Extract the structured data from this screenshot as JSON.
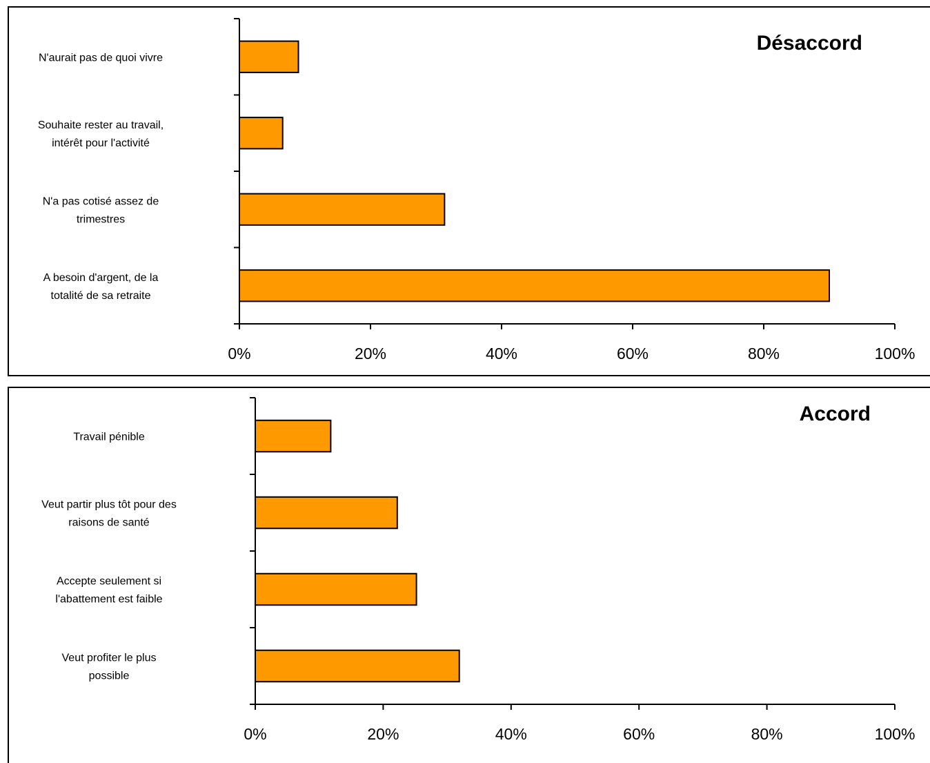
{
  "colors": {
    "bar_fill": "#FF9900",
    "bar_stroke": "#000000",
    "axis": "#000000"
  },
  "chart_data": [
    {
      "type": "bar",
      "orientation": "horizontal",
      "title": "Désaccord",
      "categories": [
        [
          "N'aurait pas de quoi vivre"
        ],
        [
          "Souhaite rester au travail,",
          "intérêt pour l'activité"
        ],
        [
          "N'a pas cotisé assez de",
          "trimestres"
        ],
        [
          "A besoin d'argent, de la",
          "totalité de sa retraite"
        ]
      ],
      "values": [
        9,
        6.6,
        31.3,
        90
      ],
      "xlim": [
        0,
        100
      ],
      "xticks": [
        "0%",
        "20%",
        "40%",
        "60%",
        "80%",
        "100%"
      ],
      "legend": "none",
      "grid": false
    },
    {
      "type": "bar",
      "orientation": "horizontal",
      "title": "Accord",
      "categories": [
        [
          "Travail pénible"
        ],
        [
          "Veut partir plus tôt pour des",
          "raisons de santé"
        ],
        [
          "Accepte seulement si",
          "l'abattement est faible"
        ],
        [
          "Veut profiter le plus",
          "possible"
        ]
      ],
      "values": [
        11.8,
        22.2,
        25.2,
        31.9
      ],
      "xlim": [
        0,
        100
      ],
      "xticks": [
        "0%",
        "20%",
        "40%",
        "60%",
        "80%",
        "100%"
      ],
      "legend": "none",
      "grid": false
    }
  ]
}
